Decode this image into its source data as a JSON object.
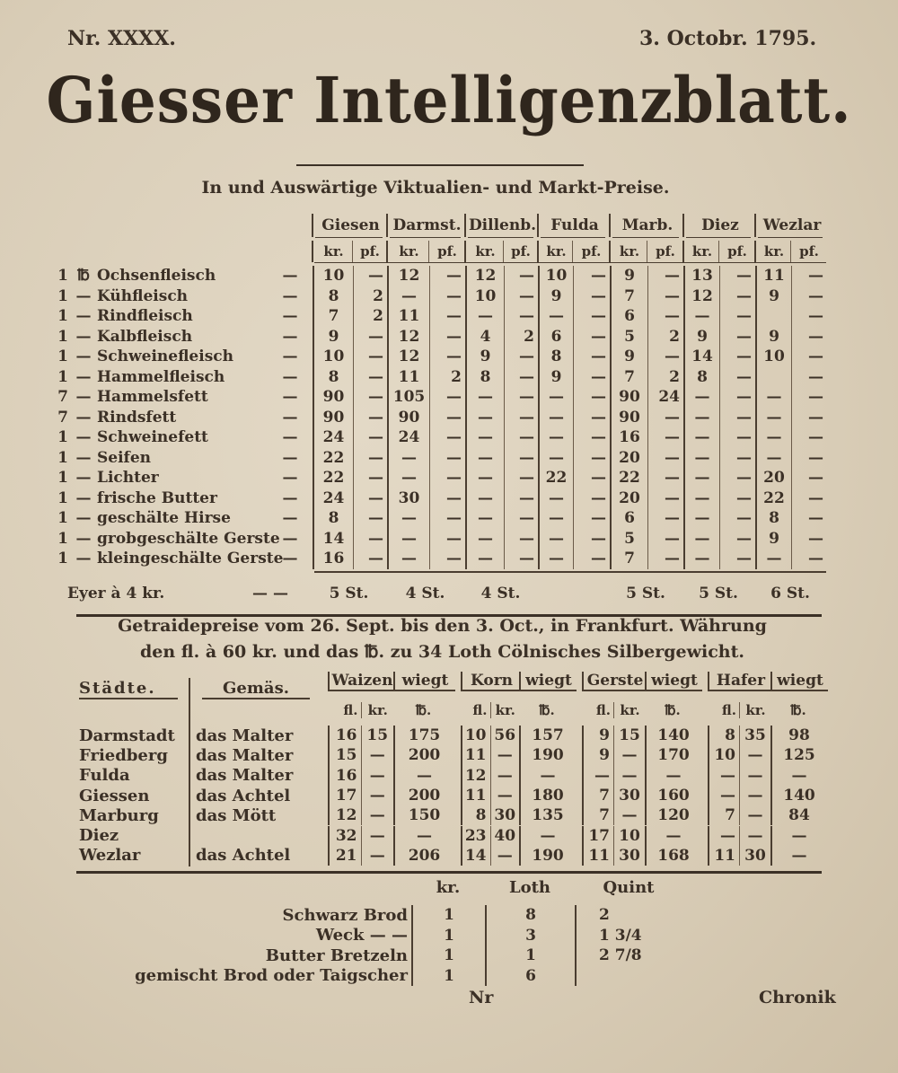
{
  "header": {
    "issue": "Nr. XXXX.",
    "date": "3. Octobr. 1795."
  },
  "title": "Giesser Intelligenzblatt.",
  "subtitle": "In und Auswärtige Viktualien- und Markt-Preise.",
  "victuals": {
    "cities": [
      "Giesen",
      "Darmst.",
      "Dillenb.",
      "Fulda",
      "Marb.",
      "Diez",
      "Wezlar"
    ],
    "subheaders": [
      "kr.",
      "pf."
    ],
    "rows": [
      {
        "qty": "1",
        "unit": "℔",
        "item": "Ochsenfleisch",
        "values": [
          "10",
          "—",
          "12",
          "—",
          "12",
          "—",
          "10",
          "—",
          "9",
          "—",
          "13",
          "—",
          "11",
          "—"
        ]
      },
      {
        "qty": "1",
        "unit": "—",
        "item": "Kühfleisch",
        "values": [
          "8",
          "2",
          "—",
          "—",
          "10",
          "—",
          "9",
          "—",
          "7",
          "—",
          "12",
          "—",
          "9",
          "—"
        ]
      },
      {
        "qty": "1",
        "unit": "—",
        "item": "Rindfleisch",
        "values": [
          "7",
          "2",
          "11",
          "—",
          "—",
          "—",
          "—",
          "—",
          "6",
          "—",
          "—",
          "—",
          "",
          "—"
        ]
      },
      {
        "qty": "1",
        "unit": "—",
        "item": "Kalbfleisch",
        "values": [
          "9",
          "—",
          "12",
          "—",
          "4",
          "2",
          "6",
          "—",
          "5",
          "2",
          "9",
          "—",
          "9",
          "—"
        ]
      },
      {
        "qty": "1",
        "unit": "—",
        "item": "Schweinefleisch",
        "values": [
          "10",
          "—",
          "12",
          "—",
          "9",
          "—",
          "8",
          "—",
          "9",
          "—",
          "14",
          "—",
          "10",
          "—"
        ]
      },
      {
        "qty": "1",
        "unit": "—",
        "item": "Hammelfleisch",
        "values": [
          "8",
          "—",
          "11",
          "2",
          "8",
          "—",
          "9",
          "—",
          "7",
          "2",
          "8",
          "—",
          "",
          "—"
        ]
      },
      {
        "qty": "7",
        "unit": "—",
        "item": "Hammelsfett",
        "values": [
          "90",
          "—",
          "105",
          "—",
          "—",
          "—",
          "—",
          "—",
          "90",
          "24",
          "—",
          "—",
          "—",
          "—"
        ]
      },
      {
        "qty": "7",
        "unit": "—",
        "item": "Rindsfett",
        "values": [
          "90",
          "—",
          "90",
          "—",
          "—",
          "—",
          "—",
          "—",
          "90",
          "—",
          "—",
          "—",
          "—",
          "—"
        ]
      },
      {
        "qty": "1",
        "unit": "—",
        "item": "Schweinefett",
        "values": [
          "24",
          "—",
          "24",
          "—",
          "—",
          "—",
          "—",
          "—",
          "16",
          "—",
          "—",
          "—",
          "—",
          "—"
        ]
      },
      {
        "qty": "1",
        "unit": "—",
        "item": "Seifen",
        "values": [
          "22",
          "—",
          "—",
          "—",
          "—",
          "—",
          "—",
          "—",
          "20",
          "—",
          "—",
          "—",
          "—",
          "—"
        ]
      },
      {
        "qty": "1",
        "unit": "—",
        "item": "Lichter",
        "values": [
          "22",
          "—",
          "—",
          "—",
          "—",
          "—",
          "22",
          "—",
          "22",
          "—",
          "—",
          "—",
          "20",
          "—"
        ]
      },
      {
        "qty": "1",
        "unit": "—",
        "item": "frische Butter",
        "values": [
          "24",
          "—",
          "30",
          "—",
          "—",
          "—",
          "—",
          "—",
          "20",
          "—",
          "—",
          "—",
          "22",
          "—"
        ]
      },
      {
        "qty": "1",
        "unit": "—",
        "item": "geschälte Hirse",
        "values": [
          "8",
          "—",
          "—",
          "—",
          "—",
          "—",
          "—",
          "—",
          "6",
          "—",
          "—",
          "—",
          "8",
          "—"
        ]
      },
      {
        "qty": "1",
        "unit": "—",
        "item": "grobgeschälte Gerste",
        "values": [
          "14",
          "—",
          "—",
          "—",
          "—",
          "—",
          "—",
          "—",
          "5",
          "—",
          "—",
          "—",
          "9",
          "—"
        ]
      },
      {
        "qty": "1",
        "unit": "—",
        "item": "kleingeschälte Gerste",
        "values": [
          "16",
          "—",
          "—",
          "—",
          "—",
          "—",
          "—",
          "—",
          "7",
          "—",
          "—",
          "—",
          "—",
          "—"
        ]
      }
    ],
    "eggs": {
      "label": "Eyer à 4 kr.",
      "dashes": "—   —",
      "values": [
        "5 St.",
        "4 St.",
        "4 St.",
        "",
        "5 St.",
        "5 St.",
        "6 St."
      ]
    }
  },
  "grain": {
    "intro_line1": "Getraidepreise vom 26. Sept. bis den 3. Oct., in Frankfurt. Währung",
    "intro_line2": "den fl. à 60 kr. und das ℔. zu 34 Loth Cölnisches Silbergewicht.",
    "col_city": "Städte.",
    "col_measure": "Gemäs.",
    "grains": [
      "Waizen",
      "Korn",
      "Gerste",
      "Hafer"
    ],
    "weighs": "wiegt",
    "sub_fl": "fl.",
    "sub_kr": "kr.",
    "sub_lb": "℔.",
    "rows": [
      {
        "city": "Darmstadt",
        "measure": "das Malter",
        "values": [
          "16",
          "15",
          "175",
          "10",
          "56",
          "157",
          "9",
          "15",
          "140",
          "8",
          "35",
          "98"
        ]
      },
      {
        "city": "Friedberg",
        "measure": "das Malter",
        "values": [
          "15",
          "—",
          "200",
          "11",
          "—",
          "190",
          "9",
          "—",
          "170",
          "10",
          "—",
          "125"
        ]
      },
      {
        "city": "Fulda",
        "measure": "das Malter",
        "values": [
          "16",
          "—",
          "—",
          "12",
          "—",
          "—",
          "—",
          "—",
          "—",
          "—",
          "—",
          "—"
        ]
      },
      {
        "city": "Giessen",
        "measure": "das Achtel",
        "values": [
          "17",
          "—",
          "200",
          "11",
          "—",
          "180",
          "7",
          "30",
          "160",
          "—",
          "—",
          "140"
        ]
      },
      {
        "city": "Marburg",
        "measure": "das Mött",
        "values": [
          "12",
          "—",
          "150",
          "8",
          "30",
          "135",
          "7",
          "—",
          "120",
          "7",
          "—",
          "84"
        ]
      },
      {
        "city": "Diez",
        "measure": "",
        "values": [
          "32",
          "—",
          "—",
          "23",
          "40",
          "—",
          "17",
          "10",
          "—",
          "—",
          "—",
          "—"
        ]
      },
      {
        "city": "Wezlar",
        "measure": "das Achtel",
        "values": [
          "21",
          "—",
          "206",
          "14",
          "—",
          "190",
          "11",
          "30",
          "168",
          "11",
          "30",
          "—"
        ]
      }
    ]
  },
  "bread": {
    "headers": [
      "kr.",
      "Loth",
      "Quint"
    ],
    "rows": [
      {
        "item": "Schwarz Brod",
        "values": [
          "1",
          "8",
          "2"
        ]
      },
      {
        "item": "Weck — —",
        "values": [
          "1",
          "3",
          "1 3/4"
        ]
      },
      {
        "item": "Butter Bretzeln",
        "values": [
          "1",
          "1",
          "2 7/8"
        ]
      },
      {
        "item": "gemischt Brod oder Taigscher",
        "values": [
          "1",
          "6",
          ""
        ]
      }
    ]
  },
  "footer": {
    "catchword_left": "Nr",
    "catchword_right": "Chronik"
  },
  "colors": {
    "paper": "#d9cdb7",
    "ink": "#3b3026"
  }
}
